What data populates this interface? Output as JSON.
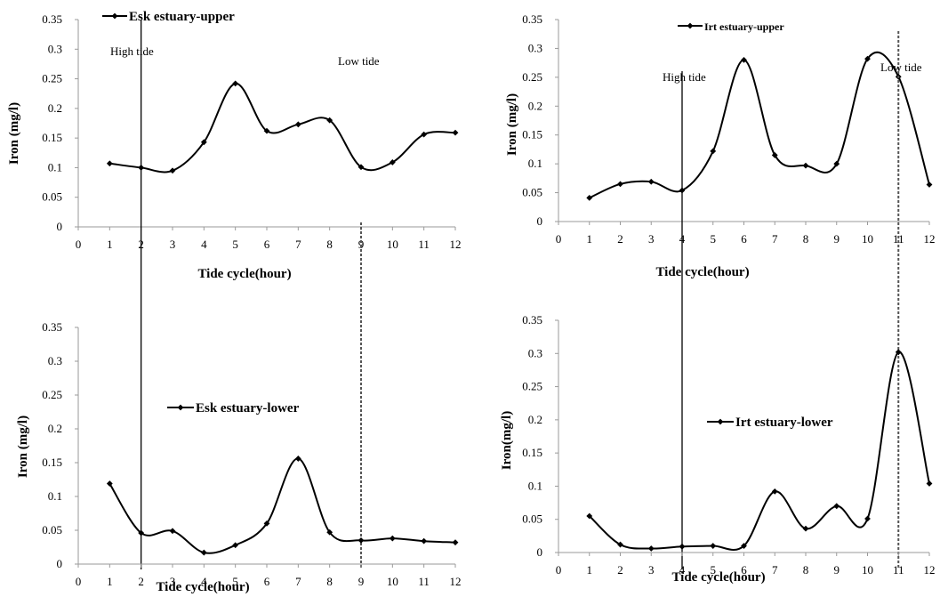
{
  "chart_data": [
    {
      "type": "line",
      "legend": "Esk estuary-upper",
      "xlabel": "Tide cycle(hour)",
      "ylabel": "Iron (mg/l)",
      "xlim": [
        0,
        12
      ],
      "ylim": [
        0,
        0.35
      ],
      "x_ticks": [
        "0",
        "1",
        "2",
        "3",
        "4",
        "5",
        "6",
        "7",
        "8",
        "9",
        "10",
        "11",
        "12"
      ],
      "y_ticks": [
        "0",
        "0.05",
        "0.1",
        "0.15",
        "0.2",
        "0.25",
        "0.3",
        "0.35"
      ],
      "x": [
        1,
        2,
        3,
        4,
        5,
        6,
        7,
        8,
        9,
        10,
        11,
        12
      ],
      "values": [
        0.107,
        0.1,
        0.095,
        0.143,
        0.242,
        0.162,
        0.173,
        0.18,
        0.101,
        0.109,
        0.156,
        0.159
      ],
      "high_tide": {
        "label": "High tide",
        "x": 2
      },
      "low_tide": {
        "label": "Low tide",
        "x": 9
      }
    },
    {
      "type": "line",
      "legend": "Irt estuary-upper",
      "xlabel": "Tide cycle(hour)",
      "ylabel": "Iron (mg/l)",
      "xlim": [
        0,
        12
      ],
      "ylim": [
        0,
        0.35
      ],
      "x_ticks": [
        "0",
        "1",
        "2",
        "3",
        "4",
        "5",
        "6",
        "7",
        "8",
        "9",
        "10",
        "11",
        "12"
      ],
      "y_ticks": [
        "0",
        "0.05",
        "0.1",
        "0.15",
        "0.2",
        "0.25",
        "0.3",
        "0.35"
      ],
      "x": [
        1,
        2,
        3,
        4,
        5,
        6,
        7,
        8,
        9,
        10,
        11,
        12
      ],
      "values": [
        0.041,
        0.065,
        0.069,
        0.054,
        0.122,
        0.28,
        0.115,
        0.097,
        0.1,
        0.282,
        0.251,
        0.064
      ],
      "high_tide": {
        "label": "High tide",
        "x": 4
      },
      "low_tide": {
        "label": "Low tide",
        "x": 11
      }
    },
    {
      "type": "line",
      "legend": "Esk estuary-lower",
      "xlabel": "Tide cycle(hour)",
      "ylabel": "Iron (mg/l)",
      "xlim": [
        0,
        12
      ],
      "ylim": [
        0,
        0.35
      ],
      "x_ticks": [
        "0",
        "1",
        "2",
        "3",
        "4",
        "5",
        "6",
        "7",
        "8",
        "9",
        "10",
        "11",
        "12"
      ],
      "y_ticks": [
        "0",
        "0.05",
        "0.1",
        "0.15",
        "0.2",
        "0.25",
        "0.3",
        "0.35"
      ],
      "x": [
        1,
        2,
        3,
        4,
        5,
        6,
        7,
        8,
        9,
        10,
        11,
        12
      ],
      "values": [
        0.119,
        0.046,
        0.049,
        0.017,
        0.028,
        0.06,
        0.156,
        0.047,
        0.035,
        0.038,
        0.034,
        0.032
      ],
      "high_tide": {
        "x": 2
      },
      "low_tide": {
        "x": 9
      }
    },
    {
      "type": "line",
      "legend": "Irt estuary-lower",
      "xlabel": "Tide cycle(hour)",
      "ylabel": "Iron(mg/l)",
      "xlim": [
        0,
        12
      ],
      "ylim": [
        0,
        0.35
      ],
      "x_ticks": [
        "0",
        "1",
        "2",
        "3",
        "4",
        "5",
        "6",
        "7",
        "8",
        "9",
        "10",
        "11",
        "12"
      ],
      "y_ticks": [
        "0",
        "0.05",
        "0.1",
        "0.15",
        "0.2",
        "0.25",
        "0.3",
        "0.35"
      ],
      "x": [
        1,
        2,
        3,
        4,
        5,
        6,
        7,
        8,
        9,
        10,
        11,
        12
      ],
      "values": [
        0.055,
        0.012,
        0.006,
        0.009,
        0.01,
        0.01,
        0.092,
        0.036,
        0.07,
        0.051,
        0.302,
        0.104
      ],
      "high_tide": {
        "x": 4
      },
      "low_tide": {
        "x": 11
      }
    }
  ]
}
